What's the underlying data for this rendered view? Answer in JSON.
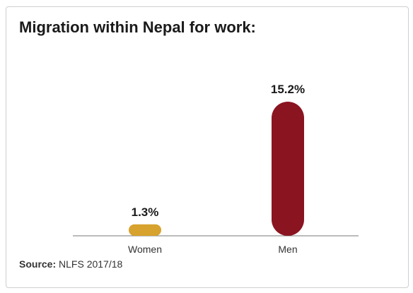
{
  "chart_data": {
    "type": "bar",
    "title": "Migration within Nepal for work:",
    "categories": [
      "Women",
      "Men"
    ],
    "values": [
      1.3,
      15.2
    ],
    "value_labels": [
      "1.3%",
      "15.2%"
    ],
    "colors": [
      "#d7a22d",
      "#8b1421"
    ],
    "ylim": [
      0,
      15.2
    ],
    "grid": false,
    "xlabel": "",
    "ylabel": ""
  },
  "source": {
    "label": "Source:",
    "text": "NLFS 2017/18"
  }
}
